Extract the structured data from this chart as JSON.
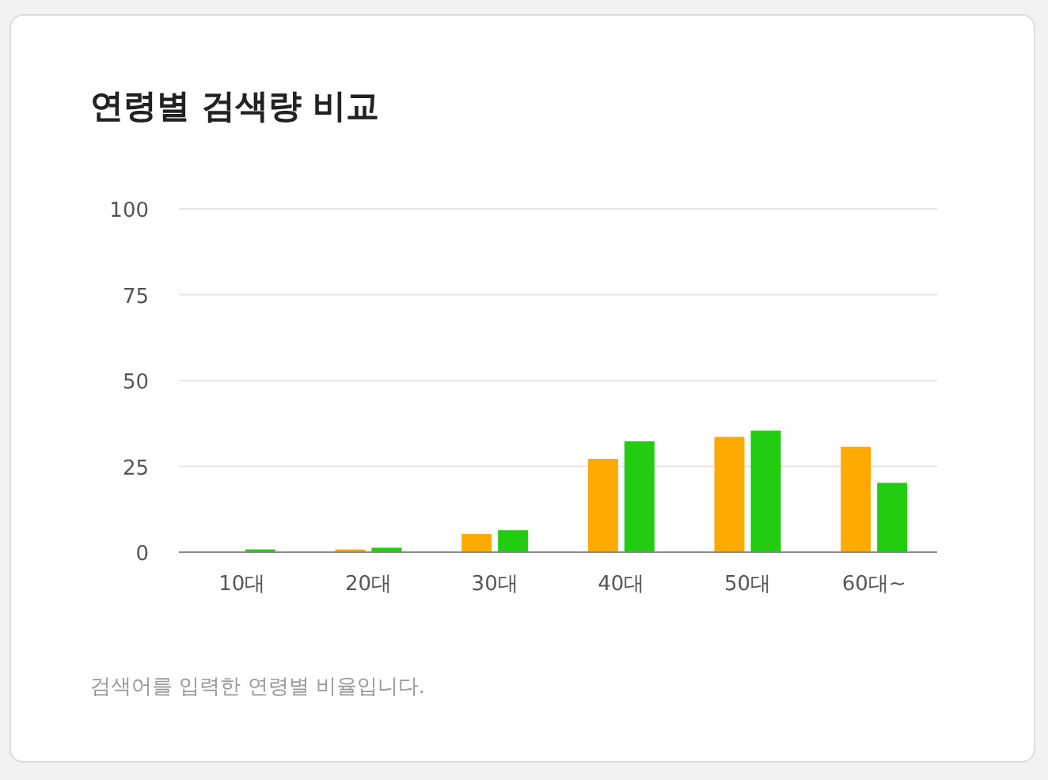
{
  "chart_data": {
    "type": "bar",
    "title": "연령별 검색량 비교",
    "categories": [
      "10대",
      "20대",
      "30대",
      "40대",
      "50대",
      "60대~"
    ],
    "series": [
      {
        "color": "#ffaa00",
        "values": [
          0,
          0.8,
          5.3,
          27.2,
          33.6,
          30.7
        ]
      },
      {
        "color": "#22cc11",
        "values": [
          0.8,
          1.3,
          6.4,
          32.3,
          35.4,
          20.2
        ]
      }
    ],
    "ylim": [
      0,
      100
    ],
    "yticks": [
      0,
      25,
      50,
      75,
      100
    ],
    "grid": "y",
    "annotations": [
      "검색어를 입력한 연령별 비율입니다."
    ]
  }
}
